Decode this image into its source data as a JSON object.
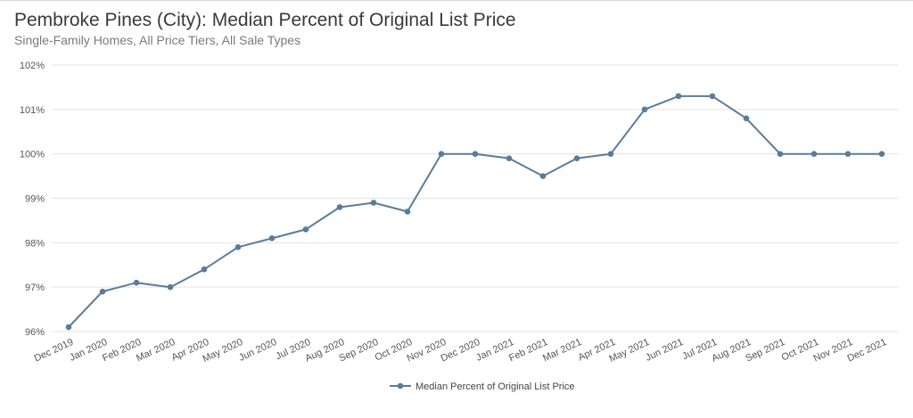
{
  "title": "Pembroke Pines (City): Median Percent of Original List Price",
  "subtitle": "Single-Family Homes, All Price Tiers, All Sale Types",
  "colors": {
    "series": "#5b7c99",
    "grid": "#e3e3e3",
    "text": "#555555"
  },
  "chart_data": {
    "type": "line",
    "title": "Pembroke Pines (City): Median Percent of Original List Price",
    "subtitle": "Single-Family Homes, All Price Tiers, All Sale Types",
    "xlabel": "",
    "ylabel": "",
    "categories": [
      "Dec 2019",
      "Jan 2020",
      "Feb 2020",
      "Mar 2020",
      "Apr 2020",
      "May 2020",
      "Jun 2020",
      "Jul 2020",
      "Aug 2020",
      "Sep 2020",
      "Oct 2020",
      "Nov 2020",
      "Dec 2020",
      "Jan 2021",
      "Feb 2021",
      "Mar 2021",
      "Apr 2021",
      "May 2021",
      "Jun 2021",
      "Jul 2021",
      "Aug 2021",
      "Sep 2021",
      "Oct 2021",
      "Nov 2021",
      "Dec 2021"
    ],
    "series": [
      {
        "name": "Median Percent of Original List Price",
        "values": [
          96.1,
          96.9,
          97.1,
          97.0,
          97.4,
          97.9,
          98.1,
          98.3,
          98.8,
          98.9,
          98.7,
          100.0,
          100.0,
          99.9,
          99.5,
          99.9,
          100.0,
          101.0,
          101.3,
          101.3,
          100.8,
          100.0,
          100.0,
          100.0,
          100.0
        ]
      }
    ],
    "ylim": [
      96,
      102
    ],
    "yticks": [
      "96%",
      "97%",
      "98%",
      "99%",
      "100%",
      "101%",
      "102%"
    ],
    "grid": "horizontal",
    "legend": "bottom-center"
  }
}
